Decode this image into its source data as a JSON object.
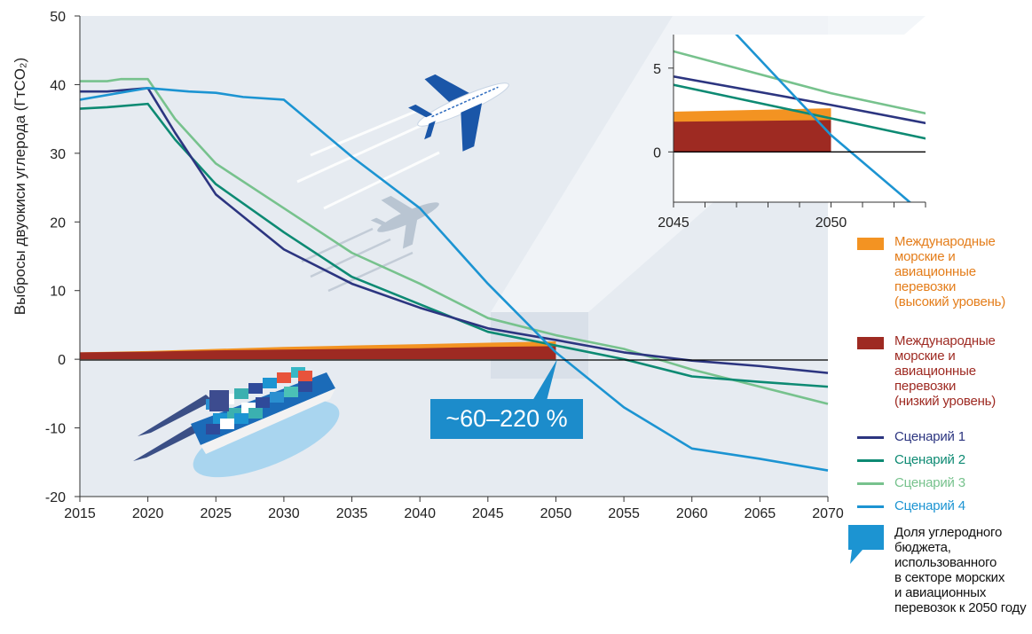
{
  "chart_data": {
    "type": "line",
    "title": "",
    "xlabel": "",
    "ylabel": "Выбросы двуокиси углерода (ГтCO₂)",
    "xlim": [
      2015,
      2070
    ],
    "ylim": [
      -20,
      50
    ],
    "x_ticks": [
      "2015",
      "2020",
      "2025",
      "2030",
      "2035",
      "2040",
      "2045",
      "2050",
      "2055",
      "2060",
      "2065",
      "2070"
    ],
    "y_ticks": [
      "50",
      "40",
      "30",
      "20",
      "10",
      "0",
      "-10",
      "-20"
    ],
    "grid": false,
    "legend_position": "right",
    "colors": {
      "scenario1": "#2c3580",
      "scenario2": "#0d8a73",
      "scenario3": "#77c28d",
      "scenario4": "#1c94d2",
      "shipping_high": "#f39322",
      "shipping_low": "#9e2a22",
      "callout": "#1c8ccb",
      "background": "#e6ebf1"
    },
    "series": [
      {
        "name": "Сценарий 1",
        "x": [
          2015,
          2017,
          2020,
          2022,
          2025,
          2030,
          2035,
          2040,
          2045,
          2050,
          2055,
          2060,
          2065,
          2070
        ],
        "values": [
          39,
          39,
          39.5,
          33,
          24,
          16,
          11,
          7.5,
          4.5,
          2.8,
          1,
          -0.2,
          -1,
          -2
        ]
      },
      {
        "name": "Сценарий 2",
        "x": [
          2015,
          2017,
          2020,
          2022,
          2025,
          2030,
          2035,
          2040,
          2045,
          2050,
          2055,
          2060,
          2065,
          2070
        ],
        "values": [
          36.5,
          36.7,
          37.2,
          32,
          25.5,
          18.5,
          12,
          8,
          4,
          2,
          0,
          -2.5,
          -3.3,
          -4
        ]
      },
      {
        "name": "Сценарий 3",
        "x": [
          2015,
          2017,
          2018,
          2020,
          2022,
          2025,
          2030,
          2035,
          2040,
          2045,
          2050,
          2055,
          2060,
          2065,
          2070
        ],
        "values": [
          40.5,
          40.5,
          40.8,
          40.8,
          35,
          28.5,
          22,
          15.5,
          11,
          6,
          3.5,
          1.5,
          -1.5,
          -4,
          -6.5
        ]
      },
      {
        "name": "Сценарий 4",
        "x": [
          2015,
          2020,
          2023,
          2025,
          2027,
          2030,
          2035,
          2040,
          2045,
          2050,
          2055,
          2060,
          2065,
          2070
        ],
        "values": [
          37.8,
          39.5,
          39,
          38.8,
          38.2,
          37.8,
          29.5,
          22,
          11,
          1,
          -7,
          -13,
          -14.5,
          -16.2
        ]
      },
      {
        "name": "Международные морские и авиационные перевозки (высокий уровень)",
        "x": [
          2015,
          2020,
          2025,
          2030,
          2035,
          2040,
          2045,
          2050
        ],
        "values": [
          1.0,
          1.2,
          1.5,
          1.8,
          2.0,
          2.2,
          2.4,
          2.6
        ]
      },
      {
        "name": "Международные морские и авиационные перевозки (низкий уровень)",
        "x": [
          2015,
          2020,
          2025,
          2030,
          2035,
          2040,
          2045,
          2050
        ],
        "values": [
          1.0,
          1.1,
          1.3,
          1.4,
          1.5,
          1.6,
          1.8,
          1.9
        ]
      }
    ],
    "annotations": [
      "~60–220 %"
    ],
    "inset": {
      "xlim": [
        2045,
        2053
      ],
      "ylim": [
        -3,
        7
      ],
      "x_ticks": [
        "2045",
        "2050"
      ],
      "y_ticks": [
        "5",
        "0"
      ]
    }
  },
  "legend": {
    "items": [
      {
        "label": "Международные морские и авиационные перевозки (высокий уровень)",
        "lines": [
          "Международные",
          "морские и",
          "авиационные",
          "перевозки",
          "(высокий уровень)"
        ],
        "color": "#e47d1a",
        "swatch": "#f39322"
      },
      {
        "label": "Международные морские и авиационные перевозки (низкий уровень)",
        "lines": [
          "Международные",
          "морские и",
          "авиационные",
          "перевозки",
          "(низкий уровень)"
        ],
        "color": "#9e2a22",
        "swatch": "#9e2a22"
      },
      {
        "label": "Сценарий 1",
        "lines": [
          "Сценарий 1"
        ],
        "color": "#2c3580",
        "swatch": "#2c3580"
      },
      {
        "label": "Сценарий 2",
        "lines": [
          "Сценарий 2"
        ],
        "color": "#0d8a73",
        "swatch": "#0d8a73"
      },
      {
        "label": "Сценарий 3",
        "lines": [
          "Сценарий 3"
        ],
        "color": "#77c28d",
        "swatch": "#77c28d"
      },
      {
        "label": "Сценарий 4",
        "lines": [
          "Сценарий 4"
        ],
        "color": "#1c94d2",
        "swatch": "#1c94d2"
      },
      {
        "label": "Доля углеродного бюджета, использованного в секторе морских и авиационных перевозок к 2050 году",
        "lines": [
          "Доля углеродного",
          "бюджета,",
          "использованного",
          "в секторе морских",
          "и авиационных",
          "перевозок к 2050 году"
        ],
        "color": "#111111",
        "swatch": "#1c94d2"
      }
    ]
  },
  "illustrations": [
    "airplane-icon",
    "airplane-shadow-icon",
    "container-ship-icon"
  ]
}
